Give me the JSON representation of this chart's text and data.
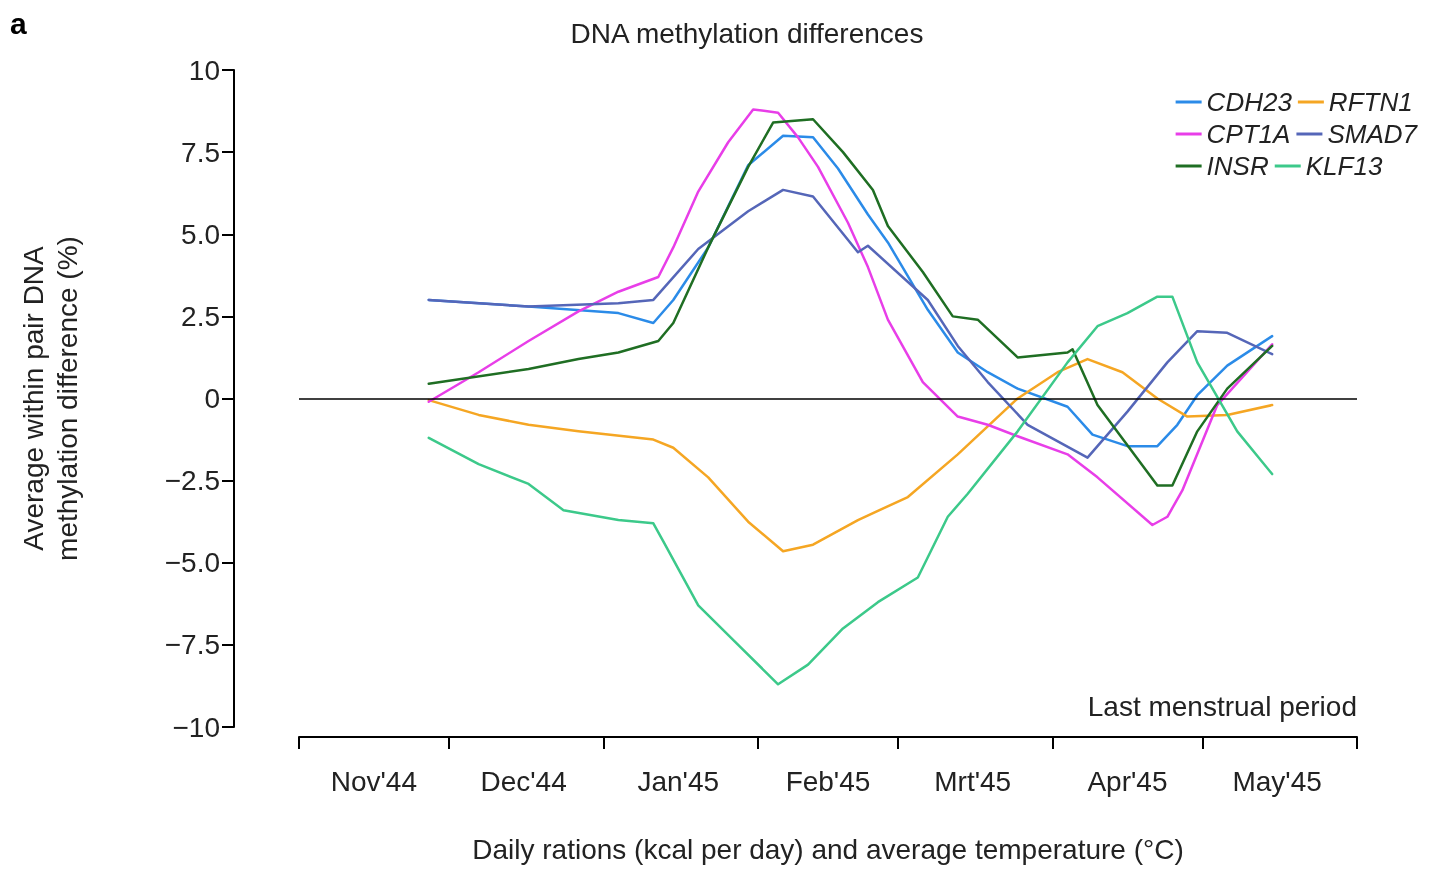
{
  "chart_data": {
    "type": "line",
    "title": "DNA methylation differences",
    "xlabel": "Daily rations (kcal per day) and average temperature (°C)",
    "ylabel": "Average within pair DNA\nmethylation difference (%)",
    "annotations": [
      "a",
      "Last menstrual period"
    ],
    "xlim": [
      "1944-11-01",
      "1945-06-01"
    ],
    "xticks": [
      {
        "value": "1944-11-01",
        "label": null
      },
      {
        "value": "1944-11-16",
        "label": "Nov'44"
      },
      {
        "value": "1944-12-01",
        "label": null
      },
      {
        "value": "1944-12-16",
        "label": "Dec'44"
      },
      {
        "value": "1945-01-01",
        "label": null
      },
      {
        "value": "1945-01-16",
        "label": "Jan'45"
      },
      {
        "value": "1945-02-01",
        "label": null
      },
      {
        "value": "1945-02-15",
        "label": "Feb'45"
      },
      {
        "value": "1945-03-01",
        "label": null
      },
      {
        "value": "1945-03-16",
        "label": "Mrt'45"
      },
      {
        "value": "1945-04-01",
        "label": null
      },
      {
        "value": "1945-04-16",
        "label": "Apr'45"
      },
      {
        "value": "1945-05-01",
        "label": null
      },
      {
        "value": "1945-05-16",
        "label": "May'45"
      },
      {
        "value": "1945-06-01",
        "label": null
      }
    ],
    "ylim": [
      -10,
      10
    ],
    "yticks": [
      {
        "value": -10,
        "label": "−10"
      },
      {
        "value": -7.5,
        "label": "−7.5"
      },
      {
        "value": -5,
        "label": "−5.0"
      },
      {
        "value": -2.5,
        "label": "−2.5"
      },
      0,
      {
        "value": 2.5,
        "label": "2.5"
      },
      {
        "value": 5,
        "label": "5.0"
      },
      {
        "value": 7.5,
        "label": "7.5"
      },
      10
    ],
    "ref_lines": [
      {
        "axis": "y",
        "value": 0,
        "label": null,
        "color": "#000000"
      }
    ],
    "grid": false,
    "legend": "top right",
    "marker": "none",
    "line_style": "solid",
    "series": [
      {
        "name": "CDH23",
        "color": "#2b8be8",
        "x": [
          "1944-11-27",
          "1944-12-17",
          "1945-01-04",
          "1945-01-11",
          "1945-01-15",
          "1945-01-22",
          "1945-01-30",
          "1945-02-06",
          "1945-02-12",
          "1945-02-17",
          "1945-02-23",
          "1945-02-27",
          "1945-03-07",
          "1945-03-13",
          "1945-03-19",
          "1945-03-25",
          "1945-04-04",
          "1945-04-09",
          "1945-04-16",
          "1945-04-22",
          "1945-04-26",
          "1945-04-30",
          "1945-05-06",
          "1945-05-15"
        ],
        "values": [
          3.0,
          2.8,
          2.6,
          2.3,
          3.0,
          4.6,
          7.1,
          8.0,
          7.95,
          7.0,
          5.6,
          4.75,
          2.7,
          1.4,
          0.8,
          0.3,
          -0.25,
          -1.1,
          -1.45,
          -1.45,
          -0.8,
          0.1,
          1.0,
          1.9
        ]
      },
      {
        "name": "RFTN1",
        "color": "#f5a623",
        "x": [
          "1944-11-27",
          "1944-12-07",
          "1944-12-17",
          "1944-12-27",
          "1945-01-11",
          "1945-01-15",
          "1945-01-22",
          "1945-01-30",
          "1945-02-06",
          "1945-02-12",
          "1945-02-21",
          "1945-03-03",
          "1945-03-13",
          "1945-03-25",
          "1945-04-02",
          "1945-04-08",
          "1945-04-15",
          "1945-04-22",
          "1945-04-28",
          "1945-05-06",
          "1945-05-15"
        ],
        "values": [
          -0.05,
          -0.5,
          -0.8,
          -1.0,
          -1.25,
          -1.5,
          -2.4,
          -3.75,
          -4.65,
          -4.45,
          -3.7,
          -3.0,
          -1.7,
          0,
          0.8,
          1.2,
          0.8,
          0,
          -0.55,
          -0.5,
          -0.2
        ]
      },
      {
        "name": "CPT1A",
        "color": "#e83ee8",
        "x": [
          "1944-11-27",
          "1944-12-07",
          "1944-12-17",
          "1944-12-27",
          "1945-01-04",
          "1945-01-12",
          "1945-01-15",
          "1945-01-20",
          "1945-01-26",
          "1945-01-31",
          "1945-02-05",
          "1945-02-09",
          "1945-02-13",
          "1945-02-19",
          "1945-02-23",
          "1945-02-27",
          "1945-03-06",
          "1945-03-13",
          "1945-03-19",
          "1945-03-25",
          "1945-04-04",
          "1945-04-10",
          "1945-04-21",
          "1945-04-24",
          "1945-04-27",
          "1945-05-04",
          "1945-05-15"
        ],
        "values": [
          -0.1,
          0.8,
          1.75,
          2.65,
          3.25,
          3.7,
          4.6,
          6.3,
          7.8,
          8.8,
          8.7,
          7.95,
          7.05,
          5.35,
          4.0,
          2.4,
          0.5,
          -0.55,
          -0.8,
          -1.15,
          -1.7,
          -2.4,
          -3.85,
          -3.6,
          -2.8,
          -0.2,
          1.65
        ]
      },
      {
        "name": "SMAD7",
        "color": "#5566b8",
        "x": [
          "1944-11-27",
          "1944-12-17",
          "1945-01-04",
          "1945-01-11",
          "1945-01-20",
          "1945-01-30",
          "1945-02-06",
          "1945-02-12",
          "1945-02-21",
          "1945-02-23",
          "1945-03-07",
          "1945-03-13",
          "1945-03-19",
          "1945-03-27",
          "1945-04-08",
          "1945-04-16",
          "1945-04-24",
          "1945-04-30",
          "1945-05-06",
          "1945-05-15"
        ],
        "values": [
          3.0,
          2.8,
          2.9,
          3.0,
          4.55,
          5.7,
          6.35,
          6.15,
          4.45,
          4.65,
          3.0,
          1.6,
          0.5,
          -0.8,
          -1.8,
          -0.4,
          1.1,
          2.05,
          2.0,
          1.35
        ]
      },
      {
        "name": "INSR",
        "color": "#1f6e23",
        "x": [
          "1944-11-27",
          "1944-12-17",
          "1944-12-27",
          "1945-01-04",
          "1945-01-12",
          "1945-01-15",
          "1945-01-22",
          "1945-01-30",
          "1945-02-04",
          "1945-02-12",
          "1945-02-18",
          "1945-02-24",
          "1945-02-27",
          "1945-03-06",
          "1945-03-12",
          "1945-03-17",
          "1945-03-25",
          "1945-04-04",
          "1945-04-05",
          "1945-04-10",
          "1945-04-22",
          "1945-04-25",
          "1945-04-30",
          "1945-05-06",
          "1945-05-15"
        ],
        "values": [
          0.45,
          0.9,
          1.2,
          1.4,
          1.75,
          2.3,
          4.6,
          7.05,
          8.4,
          8.5,
          7.5,
          6.35,
          5.25,
          3.85,
          2.5,
          2.4,
          1.25,
          1.4,
          1.5,
          -0.2,
          -2.65,
          -2.65,
          -1.0,
          0.3,
          1.6
        ]
      },
      {
        "name": "KLF13",
        "color": "#3cc98a",
        "x": [
          "1944-11-27",
          "1944-12-07",
          "1944-12-17",
          "1944-12-24",
          "1945-01-04",
          "1945-01-11",
          "1945-01-13",
          "1945-01-20",
          "1945-01-28",
          "1945-02-05",
          "1945-02-11",
          "1945-02-18",
          "1945-02-25",
          "1945-03-05",
          "1945-03-11",
          "1945-03-15",
          "1945-03-25",
          "1945-04-04",
          "1945-04-10",
          "1945-04-16",
          "1945-04-22",
          "1945-04-25",
          "1945-04-30",
          "1945-05-08",
          "1945-05-15"
        ],
        "values": [
          -1.2,
          -2.0,
          -2.6,
          -3.4,
          -3.7,
          -3.8,
          -4.35,
          -6.3,
          -7.5,
          -8.7,
          -8.1,
          -7.0,
          -6.2,
          -5.45,
          -3.6,
          -2.9,
          -1.0,
          1.1,
          2.2,
          2.6,
          3.1,
          3.1,
          1.1,
          -1.0,
          -2.3
        ]
      }
    ]
  }
}
